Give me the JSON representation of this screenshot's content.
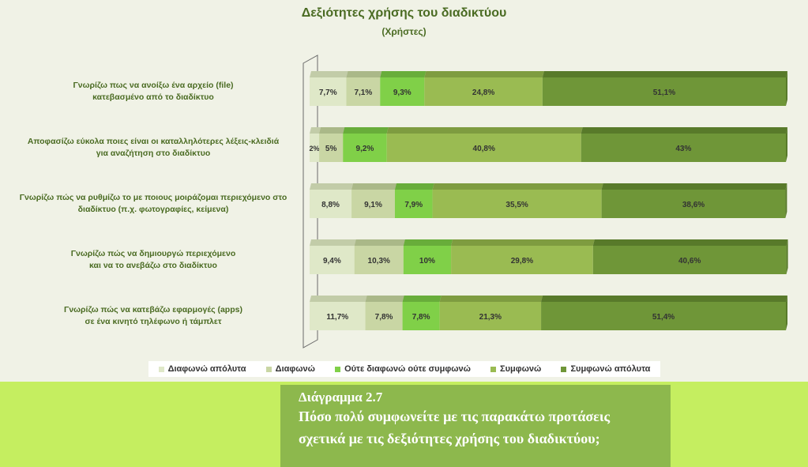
{
  "chart_data": {
    "type": "bar",
    "orientation": "horizontal-stacked",
    "title": "Δεξιότητες χρήσης του διαδικτύου",
    "subtitle": "(Χρήστες)",
    "categories": [
      "Γνωρίζω πως να ανοίξω ένα αρχείο (file) κατεβασμένο από το διαδίκτυο",
      "Αποφασίζω εύκολα ποιες είναι οι καταλληλότερες λέξεις-κλειδιά για αναζήτηση στο διαδίκτυο",
      "Γνωρίζω πώς να ρυθμίζω το με ποιους μοιράζομαι περιεχόμενο στο διαδίκτυο (π.χ. φωτογραφίες, κείμενα)",
      "Γνωρίζω πώς να δημιουργώ περιεχόμενο και να το ανεβάζω στο διαδίκτυο",
      "Γνωρίζω πώς να κατεβάζω εφαρμογές (apps) σε ένα κινητό τηλέφωνο ή τάμπλετ"
    ],
    "category_lines": [
      [
        "Γνωρίζω πως να ανοίξω ένα αρχείο (file)",
        "κατεβασμένο από το διαδίκτυο"
      ],
      [
        "Αποφασίζω εύκολα ποιες είναι οι καταλληλότερες λέξεις-κλειδιά",
        "για αναζήτηση στο διαδίκτυο"
      ],
      [
        "Γνωρίζω πώς να ρυθμίζω το με ποιους μοιράζομαι περιεχόμενο στο",
        "διαδίκτυο (π.χ. φωτογραφίες, κείμενα)"
      ],
      [
        "Γνωρίζω πώς να δημιουργώ περιεχόμενο",
        "και να το ανεβάζω στο διαδίκτυο"
      ],
      [
        "Γνωρίζω πώς να κατεβάζω εφαρμογές (apps)",
        "σε ένα κινητό τηλέφωνο ή τάμπλετ"
      ]
    ],
    "series": [
      {
        "name": "Διαφωνώ απόλυτα",
        "values": [
          7.7,
          2,
          8.8,
          9.4,
          11.7
        ],
        "labels": [
          "7,7%",
          "2%",
          "8,8%",
          "9,4%",
          "11,7%"
        ],
        "color": "#dfe8c8",
        "top_color": "#c2cca8"
      },
      {
        "name": "Διαφωνώ",
        "values": [
          7.1,
          5,
          9.1,
          10.3,
          7.8
        ],
        "labels": [
          "7,1%",
          "5%",
          "9,1%",
          "10,3%",
          "7,8%"
        ],
        "color": "#c9d6a4",
        "top_color": "#aab888"
      },
      {
        "name": "Ούτε διαφωνώ ούτε συμφωνώ",
        "values": [
          9.3,
          9.2,
          7.9,
          10,
          7.8
        ],
        "labels": [
          "9,3%",
          "9,2%",
          "7,9%",
          "10%",
          "7,8%"
        ],
        "color": "#80d048",
        "top_color": "#68ad3a"
      },
      {
        "name": "Συμφωνώ",
        "values": [
          24.8,
          40.8,
          35.5,
          29.8,
          21.3
        ],
        "labels": [
          "24,8%",
          "40,8%",
          "35,5%",
          "29,8%",
          "21,3%"
        ],
        "color": "#9abb52",
        "top_color": "#7e9c40"
      },
      {
        "name": "Συμφωνώ απόλυτα",
        "values": [
          51.1,
          43,
          38.6,
          40.6,
          51.4
        ],
        "labels": [
          "51,1%",
          "43%",
          "38,6%",
          "40,6%",
          "51,4%"
        ],
        "color": "#6f9638",
        "top_color": "#587a2a"
      }
    ],
    "xlim": [
      0,
      100
    ],
    "legend_position": "bottom"
  },
  "caption": {
    "number": "Διάγραμμα 2.7",
    "line1": "Πόσο πολύ συμφωνείτε με τις παρακάτω προτάσεις",
    "line2": "σχετικά με τις δεξιότητες χρήσης του διαδικτύου;"
  },
  "colors": {
    "background": "#c5ee60",
    "plot_background": "#f0f2e6",
    "caption_background": "#8db84d",
    "title_color": "#4a6b22"
  }
}
